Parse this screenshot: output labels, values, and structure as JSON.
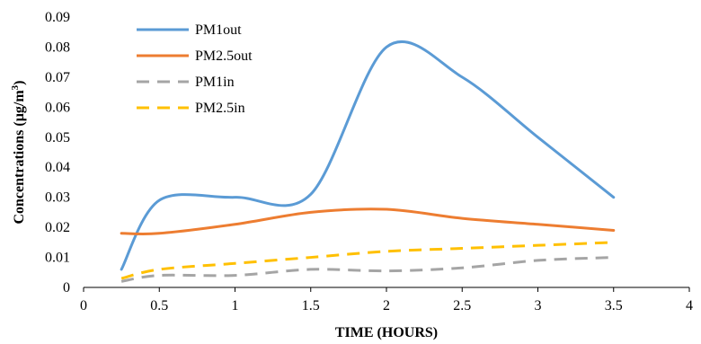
{
  "chart_data": {
    "type": "line",
    "title": "",
    "xlabel": "TIME (HOURS)",
    "ylabel_main": "Concentrations (µg/m",
    "ylabel_sup": "3",
    "ylabel_tail": ")",
    "xlim": [
      0,
      4
    ],
    "ylim": [
      0,
      0.09
    ],
    "xticks": [
      0,
      0.5,
      1,
      1.5,
      2,
      2.5,
      3,
      3.5,
      4
    ],
    "xtick_labels": [
      "0",
      "0.5",
      "1",
      "1.5",
      "2",
      "2.5",
      "3",
      "3.5",
      "4"
    ],
    "yticks": [
      0,
      0.01,
      0.02,
      0.03,
      0.04,
      0.05,
      0.06,
      0.07,
      0.08,
      0.09
    ],
    "ytick_labels": [
      "0",
      "0.01",
      "0.02",
      "0.03",
      "0.04",
      "0.05",
      "0.06",
      "0.07",
      "0.08",
      "0.09"
    ],
    "grid": false,
    "legend_position": "top-left",
    "series": [
      {
        "name": "PM1out",
        "color": "#5b9bd5",
        "dashed": false,
        "x": [
          0.25,
          0.5,
          1,
          1.5,
          2,
          2.5,
          3,
          3.5
        ],
        "y": [
          0.006,
          0.029,
          0.03,
          0.031,
          0.08,
          0.07,
          0.05,
          0.03
        ]
      },
      {
        "name": "PM2.5out",
        "color": "#ed7d31",
        "dashed": false,
        "x": [
          0.25,
          0.5,
          1,
          1.5,
          2,
          2.5,
          3,
          3.5
        ],
        "y": [
          0.018,
          0.018,
          0.021,
          0.025,
          0.026,
          0.023,
          0.021,
          0.019
        ]
      },
      {
        "name": "PM1in",
        "color": "#a5a5a5",
        "dashed": true,
        "x": [
          0.25,
          0.5,
          1,
          1.5,
          2,
          2.5,
          3,
          3.5
        ],
        "y": [
          0.002,
          0.004,
          0.004,
          0.006,
          0.0055,
          0.0065,
          0.009,
          0.01
        ]
      },
      {
        "name": "PM2.5in",
        "color": "#ffc000",
        "dashed": true,
        "x": [
          0.25,
          0.5,
          1,
          1.5,
          2,
          2.5,
          3,
          3.5
        ],
        "y": [
          0.003,
          0.006,
          0.008,
          0.01,
          0.012,
          0.013,
          0.014,
          0.015
        ]
      }
    ]
  }
}
